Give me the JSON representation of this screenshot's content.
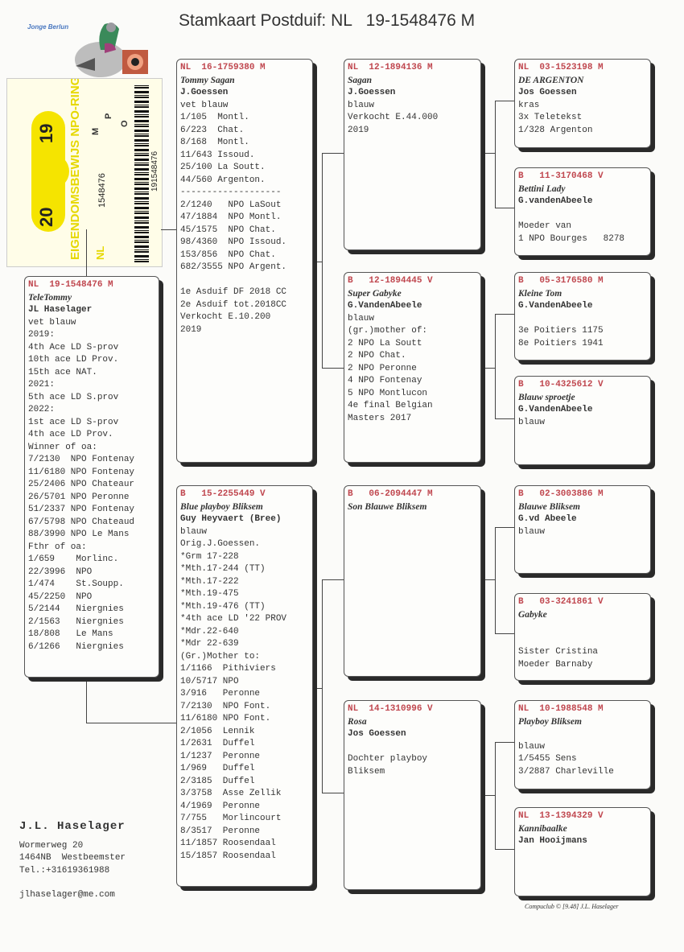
{
  "title": "Stamkaart Postduif: NL   19-1548476 M",
  "logo_text": "Jonge Berlun",
  "ring_card": {
    "year_left": "20",
    "year_right": "19",
    "heading": "EIGENDOMSBEWIJS NPO-RING",
    "country": "NL",
    "number": "1548476",
    "barcode_number": "191548476",
    "letters": [
      "M",
      "P",
      "O"
    ],
    "accent_color": "#f5e400"
  },
  "cards": {
    "subject": {
      "ring": "NL  19-1548476 M",
      "name": "TeleTommy",
      "owner": "JL Haselager",
      "lines": [
        "vet blauw",
        "2019:",
        "4th Ace LD S-prov",
        "10th ace LD Prov.",
        "15th ace NAT.",
        "2021:",
        "5th ace LD S.prov",
        "2022:",
        "1st ace LD S-prov",
        "4th ace LD Prov.",
        "Winner of oa:",
        "7/2130  NPO Fontenay",
        "11/6180 NPO Fontenay",
        "25/2406 NPO Chateaur",
        "26/5701 NPO Peronne",
        "51/2337 NPO Fontenay",
        "67/5798 NPO Chateaud",
        "88/3990 NPO Le Mans",
        "Fthr of oa:",
        "1/659    Morlinc.",
        "22/3996  NPO",
        "1/474    St.Soupp.",
        "45/2250  NPO",
        "5/2144   Niergnies",
        "2/1563   Niergnies",
        "18/808   Le Mans",
        "6/1266   Niergnies"
      ]
    },
    "sire": {
      "ring": "NL  16-1759380 M",
      "name": "Tommy Sagan",
      "owner": "J.Goessen",
      "lines": [
        "vet blauw",
        "1/105  Montl.",
        "6/223  Chat.",
        "8/168  Montl.",
        "11/643 Issoud.",
        "25/100 La Soutt.",
        "44/560 Argenton.",
        "-------------------",
        "2/1240   NPO LaSout",
        "47/1884  NPO Montl.",
        "45/1575  NPO Chat.",
        "98/4360  NPO Issoud.",
        "153/856  NPO Chat.",
        "682/3555 NPO Argent.",
        "",
        "1e Asduif DF 2018 CC",
        "2e Asduif tot.2018CC",
        "Verkocht E.10.200",
        "2019"
      ]
    },
    "dam": {
      "ring": "B   15-2255449 V",
      "name": "Blue playboy Bliksem",
      "owner": "Guy Heyvaert (Bree)",
      "lines": [
        "blauw",
        "Orig.J.Goessen.",
        "*Grm 17-228",
        "*Mth.17-244 (TT)",
        "*Mth.17-222",
        "*Mth.19-475",
        "*Mth.19-476 (TT)",
        "*4th ace LD '22 PROV",
        "*Mdr.22-640",
        "*Mdr 22-639",
        "(Gr.)Mother to:",
        "1/1166  Pithiviers",
        "10/5717 NPO",
        "3/916   Peronne",
        "7/2130  NPO Font.",
        "11/6180 NPO Font.",
        "2/1056  Lennik",
        "1/2631  Duffel",
        "1/1237  Peronne",
        "1/969   Duffel",
        "2/3185  Duffel",
        "3/3758  Asse Zellik",
        "4/1969  Peronne",
        "7/755   Morlincourt",
        "8/3517  Peronne",
        "11/1857 Roosendaal",
        "15/1857 Roosendaal"
      ]
    },
    "ss": {
      "ring": "NL  12-1894136 M",
      "name": "Sagan",
      "owner": "J.Goessen",
      "lines": [
        "blauw",
        "Verkocht E.44.000",
        "2019"
      ]
    },
    "sd": {
      "ring": "B   12-1894445 V",
      "name": "Super Gabyke",
      "owner": "G.VandenAbeele",
      "lines": [
        "blauw",
        "(gr.)mother of:",
        "2 NPO La Soutt",
        "2 NPO Chat.",
        "2 NPO Peronne",
        "4 NPO Fontenay",
        "5 NPO Montlucon",
        "4e final Belgian",
        "Masters 2017"
      ]
    },
    "ds": {
      "ring": "B   06-2094447 M",
      "name": "Son Blauwe Bliksem",
      "owner": "",
      "lines": []
    },
    "dd": {
      "ring": "NL  14-1310996 V",
      "name": "Rosa",
      "owner": "Jos Goessen",
      "lines": [
        "",
        "Dochter playboy",
        "Bliksem"
      ]
    },
    "sss": {
      "ring": "NL  03-1523198 M",
      "name": "DE ARGENTON",
      "owner": "Jos Goessen",
      "lines": [
        "kras",
        "3x Teletekst",
        "1/328 Argenton"
      ]
    },
    "ssd": {
      "ring": "B   11-3170468 V",
      "name": "Bettini Lady",
      "owner": "G.vandenAbeele",
      "lines": [
        "",
        "Moeder van",
        "1 NPO Bourges   8278"
      ]
    },
    "sds": {
      "ring": "B   05-3176580 M",
      "name": "Kleine Tom",
      "owner": "G.VandenAbeele",
      "lines": [
        "",
        "3e Poitiers 1175",
        "8e Poitiers 1941"
      ]
    },
    "sdd": {
      "ring": "B   10-4325612 V",
      "name": "Blauw sproetje",
      "owner": "G.VandenAbeele",
      "lines": [
        "blauw"
      ]
    },
    "dss": {
      "ring": "B   02-3003886 M",
      "name": "Blauwe Bliksem",
      "owner": "G.vd Abeele",
      "lines": [
        "blauw"
      ]
    },
    "dsd": {
      "ring": "B   03-3241861 V",
      "name": "Gabyke",
      "owner": "",
      "lines": [
        "",
        "Sister Cristina",
        "Moeder Barnaby"
      ]
    },
    "dds": {
      "ring": "NL  10-1988548 M",
      "name": "Playboy Bliksem",
      "owner": "",
      "lines": [
        "blauw",
        "1/5455 Sens",
        "3/2887 Charleville"
      ]
    },
    "ddd": {
      "ring": "NL  13-1394329 V",
      "name": "Kannibaalke",
      "owner": "Jan Hooijmans",
      "lines": []
    }
  },
  "footer": {
    "name": "J.L. Haselager",
    "address": "Wormerweg 20",
    "city": "1464NB  Westbeemster",
    "phone": "Tel.:+31619361988",
    "email": "jlhaselager@me.com"
  },
  "credit": "Compuclub © [9.48]  J.L. Haselager",
  "colors": {
    "ring_text": "#c0474f",
    "shadow": "#2a2a2a"
  }
}
